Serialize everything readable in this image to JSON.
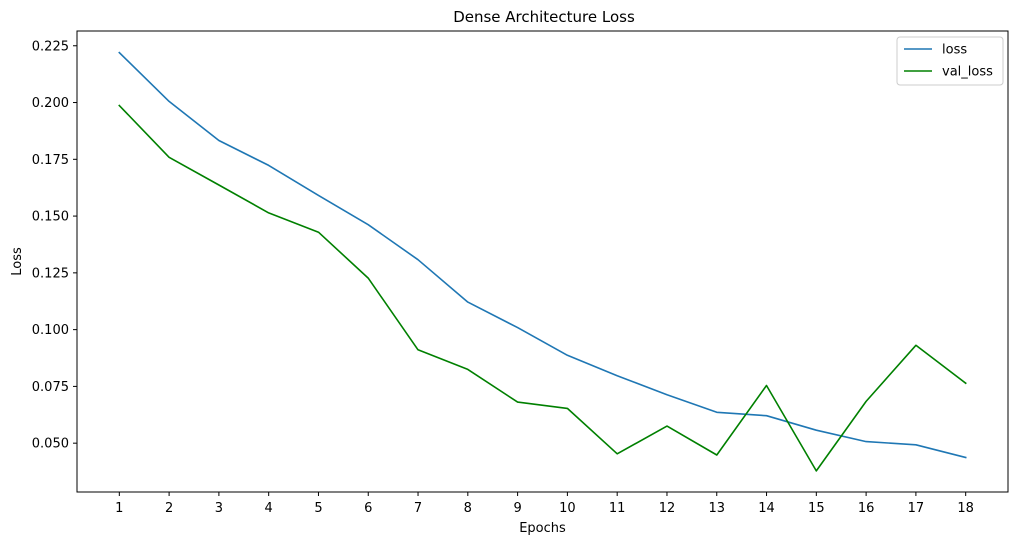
{
  "chart_data": {
    "type": "line",
    "title": "Dense Architecture Loss",
    "xlabel": "Epochs",
    "ylabel": "Loss",
    "x": [
      1,
      2,
      3,
      4,
      5,
      6,
      7,
      8,
      9,
      10,
      11,
      12,
      13,
      14,
      15,
      16,
      17,
      18
    ],
    "x_tick_labels": [
      "1",
      "2",
      "3",
      "4",
      "5",
      "6",
      "7",
      "8",
      "9",
      "10",
      "11",
      "12",
      "13",
      "14",
      "15",
      "16",
      "17",
      "18"
    ],
    "y_ticks": [
      0.05,
      0.075,
      0.1,
      0.125,
      0.15,
      0.175,
      0.2,
      0.225
    ],
    "y_tick_labels": [
      "0.050",
      "0.075",
      "0.100",
      "0.125",
      "0.150",
      "0.175",
      "0.200",
      "0.225"
    ],
    "xlim": [
      0.15,
      18.85
    ],
    "ylim": [
      0.0285,
      0.2315
    ],
    "grid": false,
    "legend_position": "top-right",
    "series": [
      {
        "name": "loss",
        "color": "#1f77b4",
        "values": [
          0.222,
          0.2005,
          0.1833,
          0.1723,
          0.1591,
          0.1462,
          0.1308,
          0.1121,
          0.1009,
          0.0887,
          0.0797,
          0.0713,
          0.0636,
          0.0621,
          0.0557,
          0.0507,
          0.0493,
          0.0437
        ]
      },
      {
        "name": "val_loss",
        "color": "#008000",
        "values": [
          0.1987,
          0.1759,
          0.1637,
          0.1514,
          0.1429,
          0.1227,
          0.0911,
          0.0825,
          0.0681,
          0.0653,
          0.0453,
          0.0575,
          0.0448,
          0.0754,
          0.0378,
          0.0684,
          0.0931,
          0.0764
        ]
      }
    ]
  }
}
